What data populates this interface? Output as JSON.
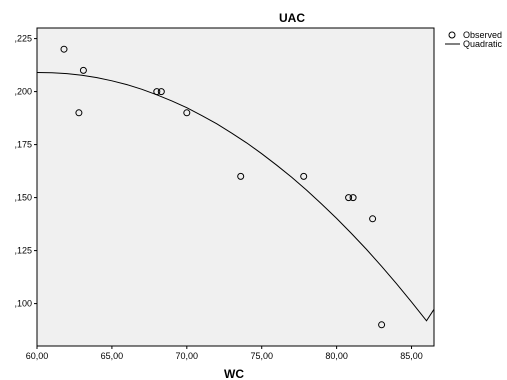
{
  "chart_data": {
    "type": "scatter",
    "title": "UAC",
    "xlabel": "WC",
    "ylabel": "",
    "xlim": [
      60,
      86.5
    ],
    "ylim": [
      0.08,
      0.23
    ],
    "x_ticks": [
      60,
      65,
      70,
      75,
      80,
      85
    ],
    "y_ticks": [
      0.1,
      0.125,
      0.15,
      0.175,
      0.2,
      0.225
    ],
    "x_tick_labels": [
      "60,00",
      "65,00",
      "70,00",
      "75,00",
      "80,00",
      "85,00"
    ],
    "y_tick_labels": [
      ",100",
      ",125",
      ",150",
      ",175",
      ",200",
      ",225"
    ],
    "grid": false,
    "legend_position": "top-right",
    "series": [
      {
        "name": "Observed",
        "kind": "points",
        "marker": "open-circle",
        "x": [
          61.8,
          62.8,
          63.1,
          68.0,
          68.3,
          70.0,
          73.6,
          77.8,
          80.8,
          81.1,
          82.4,
          83.0
        ],
        "y": [
          0.22,
          0.19,
          0.21,
          0.2,
          0.2,
          0.19,
          0.16,
          0.16,
          0.15,
          0.15,
          0.14,
          0.09
        ]
      },
      {
        "name": "Quadratic",
        "kind": "fitted-curve",
        "x": [
          60,
          61,
          62,
          63,
          64,
          65,
          66,
          67,
          68,
          69,
          70,
          71,
          72,
          73,
          74,
          75,
          76,
          77,
          78,
          79,
          80,
          81,
          82,
          83,
          84,
          85,
          86,
          86.5
        ],
        "y": [
          0.209,
          0.2089,
          0.2085,
          0.2077,
          0.2066,
          0.2051,
          0.2033,
          0.2011,
          0.1985,
          0.1956,
          0.1924,
          0.1887,
          0.1848,
          0.1804,
          0.1758,
          0.1707,
          0.1653,
          0.1596,
          0.1535,
          0.147,
          0.1402,
          0.133,
          0.1255,
          0.1176,
          0.1094,
          0.1008,
          0.0919,
          0.0973
        ]
      }
    ]
  },
  "colors": {
    "plot_background": "#f0f0f0",
    "frame": "#000000",
    "marker": "#000000",
    "curve": "#000000"
  }
}
